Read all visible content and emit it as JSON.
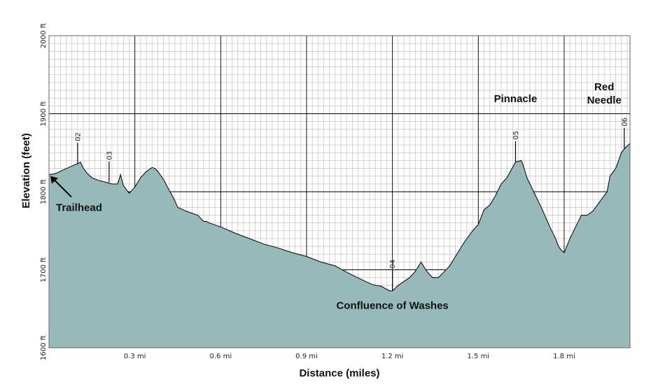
{
  "chart_data": {
    "type": "area",
    "title": "",
    "xlabel": "Distance (miles)",
    "ylabel": "Elevation (feet)",
    "xlim": [
      0,
      2.03
    ],
    "ylim": [
      1600,
      2000
    ],
    "x_ticks": [
      {
        "value": 0.3,
        "label": "0.3 mi"
      },
      {
        "value": 0.6,
        "label": "0.6 mi"
      },
      {
        "value": 0.9,
        "label": "0.9 mi"
      },
      {
        "value": 1.2,
        "label": "1.2 mi"
      },
      {
        "value": 1.5,
        "label": "1.5 mi"
      },
      {
        "value": 1.8,
        "label": "1.8 mi"
      }
    ],
    "y_ticks": [
      {
        "value": 1600,
        "label": "1600 ft"
      },
      {
        "value": 1700,
        "label": "1700 ft"
      },
      {
        "value": 1800,
        "label": "1800 ft"
      },
      {
        "value": 1900,
        "label": "1900 ft"
      },
      {
        "value": 2000,
        "label": "2000 ft"
      }
    ],
    "grid": true,
    "fill_color": "#98b9b9",
    "line_color": "#000000",
    "series": [
      {
        "x": [
          0,
          0.02,
          0.05,
          0.08,
          0.1,
          0.11,
          0.12,
          0.135,
          0.15,
          0.17,
          0.2,
          0.22,
          0.24,
          0.25,
          0.26,
          0.27,
          0.28,
          0.29,
          0.3,
          0.32,
          0.34,
          0.36,
          0.37,
          0.38,
          0.4,
          0.42,
          0.435,
          0.45,
          0.48,
          0.52,
          0.54,
          0.55,
          0.56,
          0.6,
          0.65,
          0.7,
          0.75,
          0.8,
          0.85,
          0.9,
          0.95,
          1.0,
          1.05,
          1.1,
          1.13,
          1.16,
          1.19,
          1.2,
          1.22,
          1.24,
          1.26,
          1.28,
          1.3,
          1.32,
          1.34,
          1.36,
          1.38,
          1.4,
          1.42,
          1.45,
          1.48,
          1.5,
          1.52,
          1.54,
          1.56,
          1.58,
          1.6,
          1.615,
          1.63,
          1.65,
          1.655,
          1.67,
          1.7,
          1.72,
          1.75,
          1.77,
          1.78,
          1.79,
          1.8,
          1.82,
          1.84,
          1.86,
          1.88,
          1.9,
          1.93,
          1.95,
          1.96,
          1.98,
          2.0,
          2.01,
          2.03
        ],
        "y": [
          1822,
          1823,
          1828,
          1833,
          1836,
          1838,
          1830,
          1823,
          1818,
          1815,
          1812,
          1810,
          1810,
          1822,
          1808,
          1803,
          1798,
          1802,
          1806,
          1818,
          1826,
          1831,
          1830,
          1826,
          1816,
          1802,
          1792,
          1780,
          1775,
          1770,
          1762,
          1762,
          1760,
          1755,
          1747,
          1740,
          1733,
          1728,
          1722,
          1717,
          1710,
          1705,
          1695,
          1686,
          1681,
          1679,
          1673,
          1673,
          1680,
          1685,
          1690,
          1698,
          1710,
          1698,
          1690,
          1690,
          1697,
          1705,
          1717,
          1735,
          1750,
          1758,
          1777,
          1783,
          1795,
          1810,
          1818,
          1828,
          1838,
          1840,
          1836,
          1818,
          1795,
          1780,
          1755,
          1740,
          1730,
          1725,
          1722,
          1740,
          1755,
          1770,
          1770,
          1775,
          1790,
          1800,
          1820,
          1830,
          1850,
          1855,
          1862
        ]
      }
    ],
    "waypoints": [
      {
        "x": 0.1,
        "y": 1836,
        "label": "02"
      },
      {
        "x": 0.21,
        "y": 1812,
        "label": "03"
      },
      {
        "x": 1.2,
        "y": 1673,
        "label": "04"
      },
      {
        "x": 1.63,
        "y": 1838,
        "label": "05"
      },
      {
        "x": 2.01,
        "y": 1855,
        "label": "06"
      }
    ],
    "annotations": [
      {
        "text": "Trailhead",
        "x": 0.0,
        "y": 1822,
        "arrow": true
      },
      {
        "text": "Confluence of Washes",
        "x": 1.2,
        "y": 1650
      },
      {
        "text": "Pinnacle",
        "x": 1.63,
        "y": 1915
      },
      {
        "text": "Red",
        "x": 1.94,
        "y": 1930
      },
      {
        "text": "Needle",
        "x": 1.94,
        "y": 1913
      }
    ]
  }
}
